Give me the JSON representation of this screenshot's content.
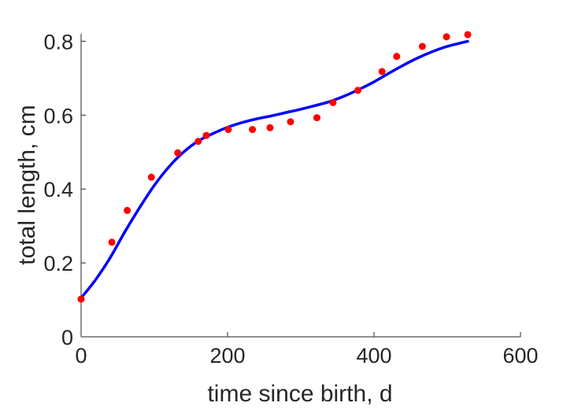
{
  "chart_data": {
    "type": "scatter",
    "xlabel": "time since birth, d",
    "ylabel": "total length, cm",
    "xlim": [
      0,
      600
    ],
    "ylim": [
      0,
      0.82
    ],
    "x_ticks": [
      0,
      200,
      400,
      600
    ],
    "x_tick_labels": [
      "0",
      "200",
      "400",
      "600"
    ],
    "y_ticks": [
      0,
      0.2,
      0.4,
      0.6,
      0.8
    ],
    "y_tick_labels": [
      "0",
      "0.2",
      "0.4",
      "0.6",
      "0.8"
    ],
    "grid": false,
    "box": "left-bottom axes only",
    "series": [
      {
        "kind": "points",
        "color": "#ff0000",
        "x": [
          0,
          42,
          63,
          96,
          132,
          160,
          171,
          201,
          234,
          258,
          286,
          322,
          344,
          378,
          411,
          431,
          466,
          499,
          528
        ],
        "y": [
          0.102,
          0.256,
          0.342,
          0.432,
          0.498,
          0.529,
          0.545,
          0.561,
          0.561,
          0.566,
          0.582,
          0.593,
          0.634,
          0.667,
          0.718,
          0.759,
          0.786,
          0.812,
          0.818
        ]
      },
      {
        "kind": "line",
        "color": "#0000ff",
        "x": [
          0,
          20,
          40,
          60,
          80,
          100,
          120,
          140,
          160,
          180,
          200,
          220,
          240,
          260,
          280,
          300,
          320,
          340,
          360,
          380,
          400,
          420,
          440,
          460,
          480,
          500,
          528
        ],
        "y": [
          0.105,
          0.155,
          0.215,
          0.285,
          0.35,
          0.41,
          0.46,
          0.5,
          0.53,
          0.55,
          0.567,
          0.58,
          0.59,
          0.598,
          0.607,
          0.616,
          0.626,
          0.637,
          0.652,
          0.67,
          0.69,
          0.713,
          0.735,
          0.755,
          0.772,
          0.786,
          0.8
        ]
      }
    ]
  }
}
